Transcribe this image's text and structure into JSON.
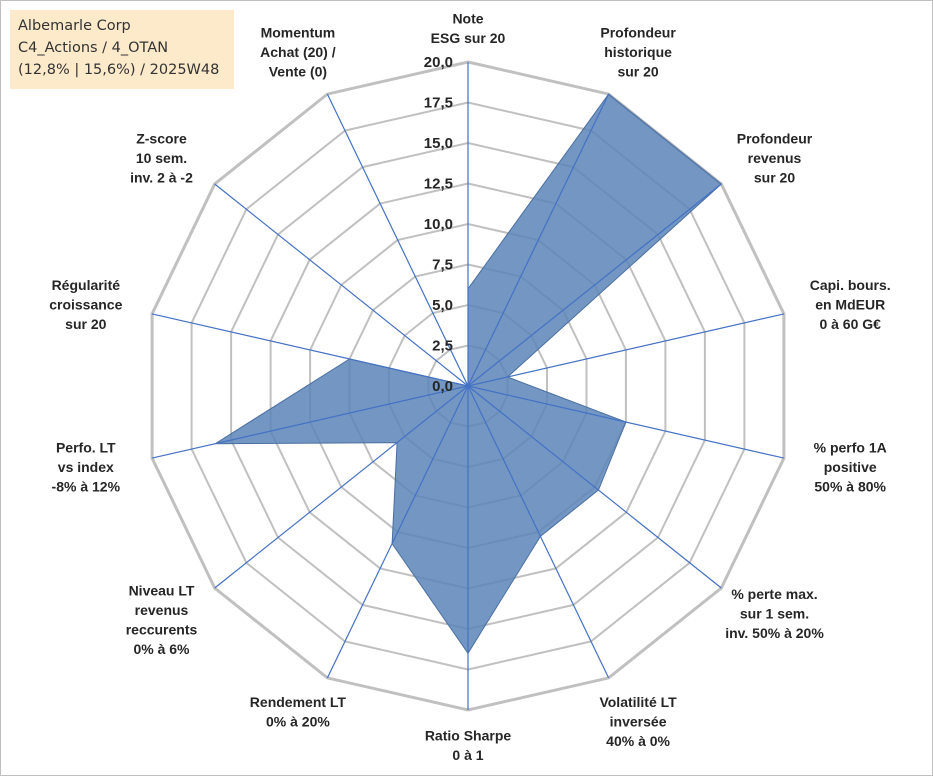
{
  "info": {
    "line1": "Albemarle Corp",
    "line2": "C4_Actions / 4_OTAN",
    "line3": "(12,8% | 15,6%) / 2025W48"
  },
  "chart_data": {
    "type": "radar",
    "title": "",
    "rmin": 0,
    "rmax": 20,
    "tick_step": 2.5,
    "tick_labels": [
      "0,0",
      "2,5",
      "5,0",
      "7,5",
      "10,0",
      "12,5",
      "15,0",
      "17,5",
      "20,0"
    ],
    "grid": true,
    "categories": [
      [
        "Note",
        "ESG sur 20"
      ],
      [
        "Profondeur",
        "historique",
        "sur 20"
      ],
      [
        "Profondeur",
        "revenus",
        "sur 20"
      ],
      [
        "Capi. bours.",
        "en MdEUR",
        "0 à 60 G€"
      ],
      [
        "% perfo 1A",
        "positive",
        "50% à 80%"
      ],
      [
        "% perte max.",
        "sur 1 sem.",
        "inv. 50% à 20%"
      ],
      [
        "Volatilité LT",
        "inversée",
        "40% à 0%"
      ],
      [
        "Ratio Sharpe",
        "0 à 1"
      ],
      [
        "Rendement LT",
        "0% à 20%"
      ],
      [
        "Niveau LT",
        "revenus",
        "reccurents",
        "0% à 6%"
      ],
      [
        "Perfo. LT",
        "vs index",
        "-8% à 12%"
      ],
      [
        "Régularité",
        "croissance",
        "sur 20"
      ],
      [
        "Z-score",
        "10 sem.",
        "inv. 2 à -2"
      ],
      [
        "Momentum",
        "Achat (20) /",
        "Vente (0)"
      ]
    ],
    "series": [
      {
        "values": [
          6.0,
          20.0,
          20.0,
          2.5,
          10.0,
          10.3,
          10.3,
          16.5,
          10.8,
          5.6,
          16.0,
          7.5,
          0.0,
          0.0
        ],
        "fill": "#5b84b8",
        "stroke": "#4a6fa0"
      }
    ],
    "colors": {
      "grid": "#c0c0c0",
      "axis": "#4472c4"
    }
  }
}
